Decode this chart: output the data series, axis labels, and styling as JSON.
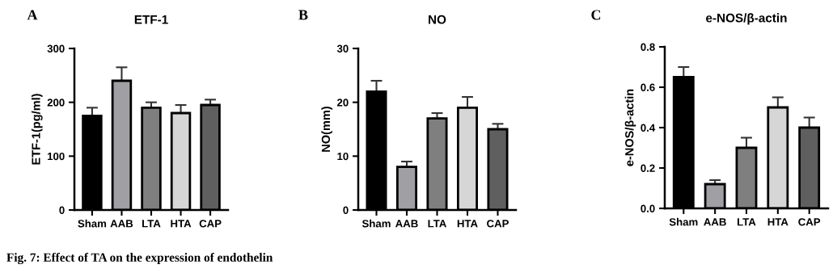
{
  "chart_data": [
    {
      "type": "bar",
      "title": "ETF-1",
      "ylabel": "ETF-1(pg/ml)",
      "categories": [
        "Sham",
        "AAB",
        "LTA",
        "HTA",
        "CAP"
      ],
      "values": [
        175,
        240,
        190,
        180,
        195
      ],
      "errors": [
        [
          175,
          190
        ],
        [
          240,
          265
        ],
        [
          190,
          200
        ],
        [
          180,
          195
        ],
        [
          195,
          205
        ]
      ],
      "colors": [
        "#000000",
        "#a0a0a4",
        "#7f7f7f",
        "#d6d6d6",
        "#5f5f5f"
      ],
      "ylim": [
        0,
        300
      ],
      "yticks": [
        0,
        100,
        200,
        300
      ],
      "grid": false,
      "annotations": [
        "A",
        "Fig. 7: Effect of TA on the expression of endothelin"
      ]
    },
    {
      "type": "bar",
      "title": "NO",
      "ylabel": "NO(mm)",
      "categories": [
        "Sham",
        "AAB",
        "LTA",
        "HTA",
        "CAP"
      ],
      "values": [
        22,
        8,
        17,
        19,
        15
      ],
      "errors": [
        [
          22,
          24
        ],
        [
          8,
          9
        ],
        [
          17,
          18
        ],
        [
          19,
          21
        ],
        [
          15,
          16
        ]
      ],
      "colors": [
        "#000000",
        "#a0a0a4",
        "#7f7f7f",
        "#d6d6d6",
        "#5f5f5f"
      ],
      "ylim": [
        0,
        30
      ],
      "yticks": [
        0,
        10,
        20,
        30
      ],
      "grid": false,
      "annotations": [
        "B"
      ]
    },
    {
      "type": "bar",
      "title": "e-NOS/β-actin",
      "ylabel": "e-NOS/β-actin",
      "categories": [
        "Sham",
        "AAB",
        "LTA",
        "HTA",
        "CAP"
      ],
      "values": [
        0.65,
        0.12,
        0.3,
        0.5,
        0.4
      ],
      "errors": [
        [
          0.65,
          0.7
        ],
        [
          0.12,
          0.14
        ],
        [
          0.3,
          0.35
        ],
        [
          0.5,
          0.55
        ],
        [
          0.4,
          0.45
        ]
      ],
      "colors": [
        "#000000",
        "#a0a0a4",
        "#7f7f7f",
        "#d6d6d6",
        "#5f5f5f"
      ],
      "ylim": [
        0,
        0.8
      ],
      "yticks": [
        {
          "value": 0,
          "label": "0.0"
        },
        0.2,
        0.4,
        0.6,
        0.8
      ],
      "grid": false,
      "annotations": [
        "C"
      ]
    }
  ]
}
